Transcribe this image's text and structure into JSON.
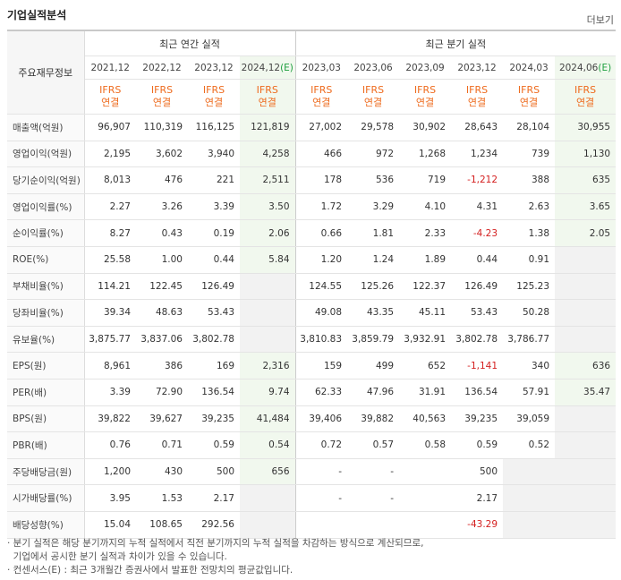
{
  "header": {
    "title": "기업실적분석",
    "more_label": "더보기"
  },
  "groups": {
    "annual": "최근 연간 실적",
    "quarter": "최근 분기 실적"
  },
  "row_header": "주요재무정보",
  "periods": [
    "2021,12",
    "2022,12",
    "2023,12",
    "2024,12",
    "2023,03",
    "2023,06",
    "2023,09",
    "2023,12",
    "2024,03",
    "2024,06"
  ],
  "estimate_suffix": "(E)",
  "ifrs": [
    "IFRS",
    "IFRS",
    "IFRS",
    "IFRS",
    "IFRS",
    "IFRS",
    "IFRS",
    "IFRS",
    "IFRS",
    "IFRS"
  ],
  "basis": [
    "연결",
    "연결",
    "연결",
    "연결",
    "연결",
    "연결",
    "연결",
    "연결",
    "연결",
    "연결"
  ],
  "rows": [
    {
      "label": "매출액(억원)",
      "values": [
        "96,907",
        "110,319",
        "116,125",
        "121,819",
        "27,002",
        "29,578",
        "30,902",
        "28,643",
        "28,104",
        "30,955"
      ]
    },
    {
      "label": "영업이익(억원)",
      "values": [
        "2,195",
        "3,602",
        "3,940",
        "4,258",
        "466",
        "972",
        "1,268",
        "1,234",
        "739",
        "1,130"
      ]
    },
    {
      "label": "당기순이익(억원)",
      "values": [
        "8,013",
        "476",
        "221",
        "2,511",
        "178",
        "536",
        "719",
        "-1,212",
        "388",
        "635"
      ]
    },
    {
      "label": "영업이익률(%)",
      "values": [
        "2.27",
        "3.26",
        "3.39",
        "3.50",
        "1.72",
        "3.29",
        "4.10",
        "4.31",
        "2.63",
        "3.65"
      ]
    },
    {
      "label": "순이익률(%)",
      "values": [
        "8.27",
        "0.43",
        "0.19",
        "2.06",
        "0.66",
        "1.81",
        "2.33",
        "-4.23",
        "1.38",
        "2.05"
      ]
    },
    {
      "label": "ROE(%)",
      "values": [
        "25.58",
        "1.00",
        "0.44",
        "5.84",
        "1.20",
        "1.24",
        "1.89",
        "0.44",
        "0.91",
        ""
      ]
    },
    {
      "label": "부채비율(%)",
      "values": [
        "114.21",
        "122.45",
        "126.49",
        "",
        "124.55",
        "125.26",
        "122.37",
        "126.49",
        "125.23",
        ""
      ]
    },
    {
      "label": "당좌비율(%)",
      "values": [
        "39.34",
        "48.63",
        "53.43",
        "",
        "49.08",
        "43.35",
        "45.11",
        "53.43",
        "50.28",
        ""
      ]
    },
    {
      "label": "유보율(%)",
      "values": [
        "3,875.77",
        "3,837.06",
        "3,802.78",
        "",
        "3,810.83",
        "3,859.79",
        "3,932.91",
        "3,802.78",
        "3,786.77",
        ""
      ]
    },
    {
      "label": "EPS(원)",
      "values": [
        "8,961",
        "386",
        "169",
        "2,316",
        "159",
        "499",
        "652",
        "-1,141",
        "340",
        "636"
      ]
    },
    {
      "label": "PER(배)",
      "values": [
        "3.39",
        "72.90",
        "136.54",
        "9.74",
        "62.33",
        "47.96",
        "31.91",
        "136.54",
        "57.91",
        "35.47"
      ]
    },
    {
      "label": "BPS(원)",
      "values": [
        "39,822",
        "39,627",
        "39,235",
        "41,484",
        "39,406",
        "39,882",
        "40,563",
        "39,235",
        "39,059",
        ""
      ]
    },
    {
      "label": "PBR(배)",
      "values": [
        "0.76",
        "0.71",
        "0.59",
        "0.54",
        "0.72",
        "0.57",
        "0.58",
        "0.59",
        "0.52",
        ""
      ]
    },
    {
      "label": "주당배당금(원)",
      "values": [
        "1,200",
        "430",
        "500",
        "656",
        "-",
        "-",
        "",
        "500",
        "",
        ""
      ]
    },
    {
      "label": "시가배당률(%)",
      "values": [
        "3.95",
        "1.53",
        "2.17",
        "",
        "-",
        "-",
        "",
        "2.17",
        "",
        ""
      ]
    },
    {
      "label": "배당성향(%)",
      "values": [
        "15.04",
        "108.65",
        "292.56",
        "",
        "",
        "",
        "",
        "-43.29",
        "",
        ""
      ]
    }
  ],
  "notes": [
    "· 분기 실적은 해당 분기까지의 누적 실적에서 직전 분기까지의 누적 실적을 차감하는 방식으로 계산되므로,",
    "  기업에서 공시한 분기 실적과 차이가 있을 수 있습니다.",
    "· 컨센서스(E) : 최근 3개월간 증권사에서 발표한 전망치의 평균값입니다."
  ],
  "colors": {
    "ifrs": "#ee6b1e",
    "negative": "#d42020",
    "estimate_bg": "#f1f8ee",
    "estimate_mark": "#20a040"
  }
}
